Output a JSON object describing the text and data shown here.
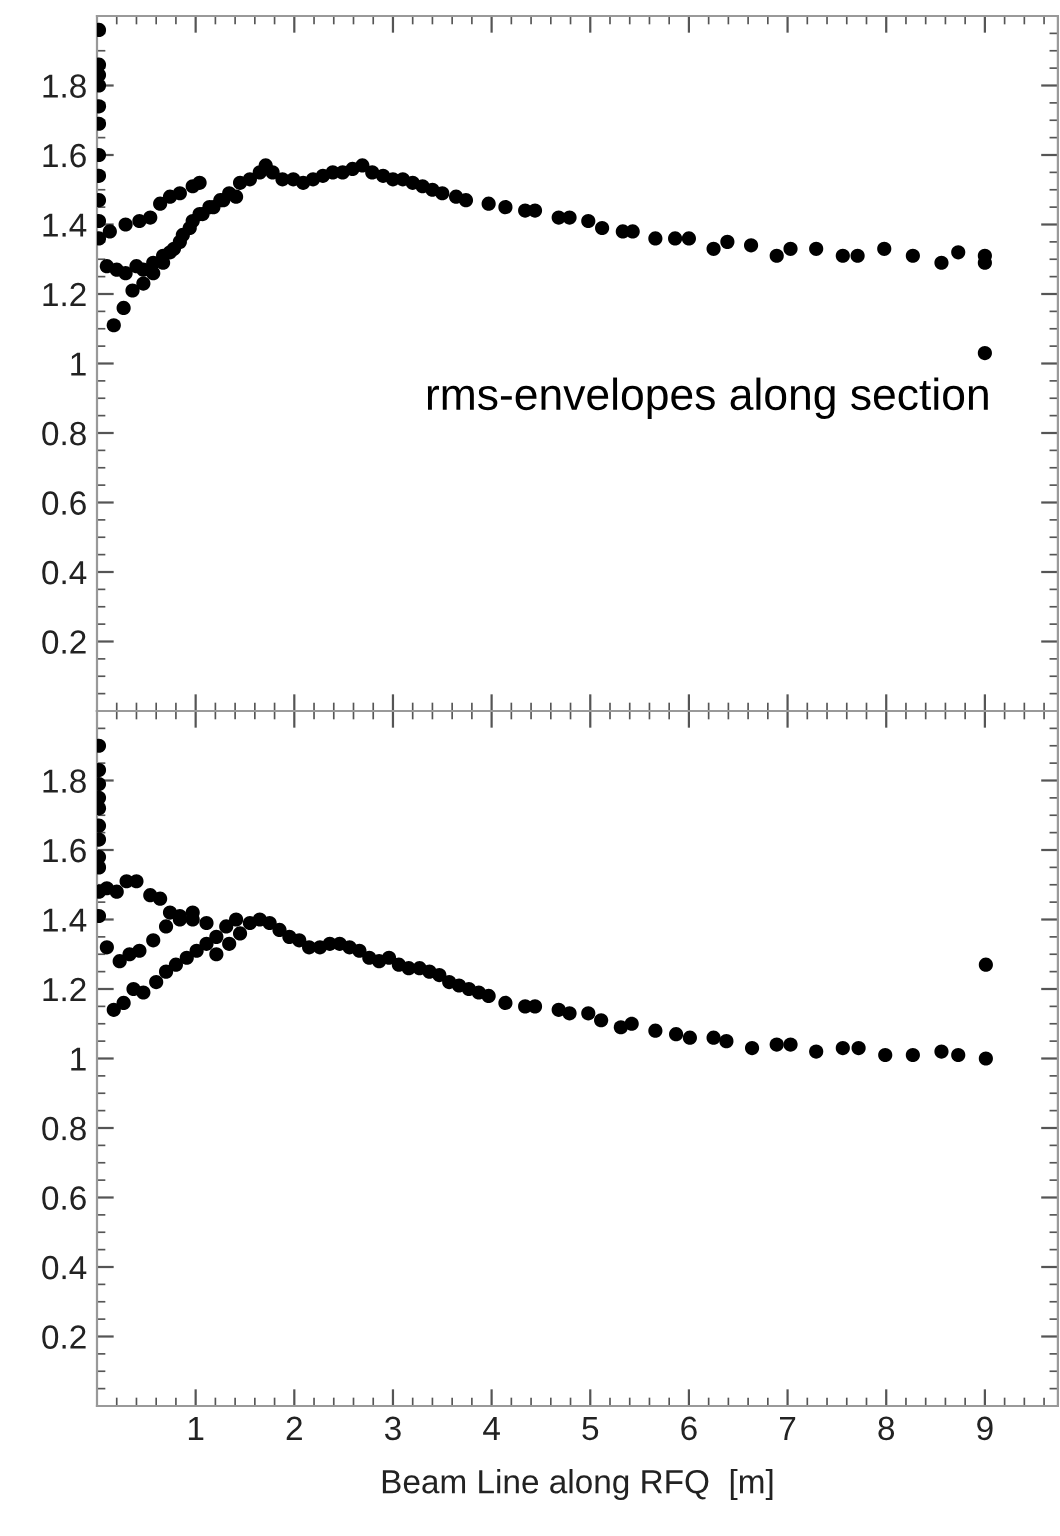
{
  "chart_data": [
    {
      "type": "scatter",
      "color": "#000000",
      "marker": "circle",
      "tick_labels": "y",
      "grid": false,
      "annotations": [
        "rms-envelopes along section"
      ],
      "xlim": [
        0,
        9.74
      ],
      "ylim": [
        0,
        2.0
      ],
      "xticks": [
        {
          "value": 1,
          "label": null
        },
        {
          "value": 2,
          "label": null
        },
        {
          "value": 3,
          "label": null
        },
        {
          "value": 4,
          "label": null
        },
        {
          "value": 5,
          "label": null
        },
        {
          "value": 6,
          "label": null
        },
        {
          "value": 7,
          "label": null
        },
        {
          "value": 8,
          "label": null
        },
        {
          "value": 9,
          "label": null
        }
      ],
      "yticks": [
        0.2,
        0.4,
        0.6,
        0.8,
        1,
        1.2,
        1.4,
        1.6,
        1.8
      ],
      "x": [
        0.02,
        0.02,
        0.02,
        0.02,
        0.02,
        0.02,
        0.02,
        0.02,
        0.02,
        0.02,
        0.02,
        0.13,
        0.29,
        0.43,
        0.54,
        0.64,
        0.74,
        0.84,
        0.97,
        1.04,
        0.1,
        0.2,
        0.29,
        0.4,
        0.47,
        0.57,
        0.67,
        0.74,
        0.84,
        0.94,
        1.04,
        1.14,
        1.25,
        0.17,
        0.27,
        0.36,
        0.47,
        0.57,
        0.67,
        0.78,
        0.87,
        0.97,
        1.07,
        1.18,
        1.28,
        1.41,
        1.34,
        1.45,
        1.55,
        1.65,
        1.71,
        1.78,
        1.88,
        1.99,
        2.09,
        2.19,
        2.29,
        2.39,
        2.49,
        2.59,
        2.69,
        2.79,
        2.9,
        3.0,
        3.1,
        3.2,
        3.3,
        3.4,
        3.5,
        3.64,
        3.74,
        3.97,
        4.14,
        4.34,
        4.44,
        4.68,
        4.79,
        4.98,
        5.12,
        5.33,
        5.43,
        5.66,
        5.86,
        6.0,
        6.25,
        6.39,
        6.63,
        6.89,
        7.03,
        7.29,
        7.56,
        7.71,
        7.98,
        8.27,
        8.56,
        8.73,
        9.0,
        9.0,
        9.0
      ],
      "values": [
        1.96,
        1.86,
        1.83,
        1.8,
        1.74,
        1.69,
        1.6,
        1.54,
        1.47,
        1.41,
        1.36,
        1.38,
        1.4,
        1.41,
        1.42,
        1.46,
        1.48,
        1.49,
        1.51,
        1.52,
        1.28,
        1.27,
        1.26,
        1.28,
        1.27,
        1.29,
        1.31,
        1.32,
        1.35,
        1.39,
        1.43,
        1.45,
        1.47,
        1.11,
        1.16,
        1.21,
        1.23,
        1.26,
        1.29,
        1.33,
        1.37,
        1.41,
        1.43,
        1.45,
        1.47,
        1.48,
        1.49,
        1.52,
        1.53,
        1.55,
        1.57,
        1.55,
        1.53,
        1.53,
        1.52,
        1.53,
        1.54,
        1.55,
        1.55,
        1.56,
        1.57,
        1.55,
        1.54,
        1.53,
        1.53,
        1.52,
        1.51,
        1.5,
        1.49,
        1.48,
        1.47,
        1.46,
        1.45,
        1.44,
        1.44,
        1.42,
        1.42,
        1.41,
        1.39,
        1.38,
        1.38,
        1.36,
        1.36,
        1.36,
        1.33,
        1.35,
        1.34,
        1.31,
        1.33,
        1.33,
        1.31,
        1.31,
        1.33,
        1.31,
        1.29,
        1.32,
        1.31,
        1.29,
        1.03
      ]
    },
    {
      "type": "scatter",
      "color": "#000000",
      "marker": "circle",
      "grid": false,
      "xlabel": "Beam Line along RFQ  [m]",
      "xlim": [
        0,
        9.74
      ],
      "ylim": [
        0,
        2.0
      ],
      "xticks": [
        1,
        2,
        3,
        4,
        5,
        6,
        7,
        8,
        9
      ],
      "yticks": [
        0.2,
        0.4,
        0.6,
        0.8,
        1,
        1.2,
        1.4,
        1.6,
        1.8
      ],
      "x": [
        0.02,
        0.02,
        0.02,
        0.02,
        0.02,
        0.02,
        0.02,
        0.02,
        0.02,
        0.02,
        0.02,
        0.1,
        0.2,
        0.3,
        0.4,
        0.54,
        0.64,
        0.74,
        0.84,
        0.97,
        1.11,
        0.1,
        0.23,
        0.33,
        0.43,
        0.57,
        0.7,
        0.84,
        0.97,
        0.17,
        0.27,
        0.37,
        0.47,
        0.6,
        0.7,
        0.8,
        0.91,
        1.01,
        1.11,
        1.21,
        1.31,
        1.41,
        1.21,
        1.34,
        1.45,
        1.55,
        1.65,
        1.75,
        1.85,
        1.95,
        2.05,
        2.15,
        2.26,
        2.36,
        2.46,
        2.56,
        2.66,
        2.76,
        2.86,
        2.96,
        3.06,
        3.16,
        3.27,
        3.37,
        3.47,
        3.57,
        3.67,
        3.77,
        3.87,
        3.97,
        4.14,
        4.34,
        4.44,
        4.68,
        4.79,
        4.98,
        5.11,
        5.31,
        5.42,
        5.66,
        5.87,
        6.01,
        6.25,
        6.38,
        6.64,
        6.89,
        7.03,
        7.29,
        7.56,
        7.72,
        7.99,
        8.27,
        8.56,
        8.73,
        9.01,
        9.01
      ],
      "values": [
        1.9,
        1.83,
        1.79,
        1.75,
        1.72,
        1.67,
        1.63,
        1.58,
        1.55,
        1.48,
        1.41,
        1.49,
        1.48,
        1.51,
        1.51,
        1.47,
        1.46,
        1.42,
        1.41,
        1.4,
        1.39,
        1.32,
        1.28,
        1.3,
        1.31,
        1.34,
        1.38,
        1.4,
        1.42,
        1.14,
        1.16,
        1.2,
        1.19,
        1.22,
        1.25,
        1.27,
        1.29,
        1.31,
        1.33,
        1.35,
        1.38,
        1.4,
        1.3,
        1.33,
        1.36,
        1.39,
        1.4,
        1.39,
        1.37,
        1.35,
        1.34,
        1.32,
        1.32,
        1.33,
        1.33,
        1.32,
        1.31,
        1.29,
        1.28,
        1.29,
        1.27,
        1.26,
        1.26,
        1.25,
        1.24,
        1.22,
        1.21,
        1.2,
        1.19,
        1.18,
        1.16,
        1.15,
        1.15,
        1.14,
        1.13,
        1.13,
        1.11,
        1.09,
        1.1,
        1.08,
        1.07,
        1.06,
        1.06,
        1.05,
        1.03,
        1.04,
        1.04,
        1.02,
        1.03,
        1.03,
        1.01,
        1.01,
        1.02,
        1.01,
        1.0,
        1.27
      ]
    }
  ]
}
